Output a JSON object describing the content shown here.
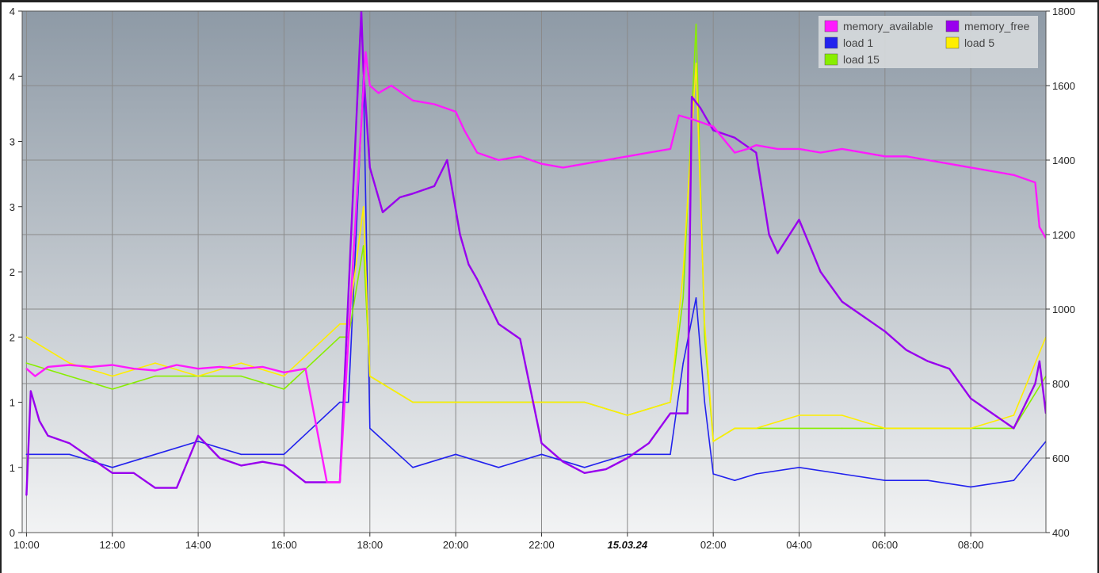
{
  "chart_data": {
    "type": "line",
    "title": "",
    "xlabel": "",
    "ylabel": "",
    "x_tick_labels": [
      "10:00",
      "12:00",
      "14:00",
      "16:00",
      "18:00",
      "20:00",
      "22:00",
      "15.03.24",
      "02:00",
      "04:00",
      "06:00",
      "08:00"
    ],
    "x_range_hours": [
      -0.1,
      23.75
    ],
    "y_left_ticks": [
      "0",
      "1",
      "1",
      "2",
      "2",
      "3",
      "3",
      "4",
      "4"
    ],
    "y_left_values": [
      0,
      0.5,
      1.0,
      1.5,
      2.0,
      2.5,
      3.0,
      3.5,
      4.0
    ],
    "y_left_range": [
      0,
      4
    ],
    "y_right_ticks": [
      "400",
      "600",
      "800",
      "1000",
      "1200",
      "1400",
      "1600",
      "1800"
    ],
    "y_right_range": [
      400,
      1800
    ],
    "grid": true,
    "legend_placement": "top-right",
    "x_unit_note": "x values are hours after 10:00 on the day before 15.03.24",
    "series": [
      {
        "name": "memory_available",
        "axis": "right",
        "color": "#ff1aff",
        "x": [
          0.0,
          0.2,
          0.5,
          1.0,
          1.5,
          2.0,
          2.5,
          3.0,
          3.5,
          4.0,
          4.5,
          5.0,
          5.5,
          6.0,
          6.5,
          7.0,
          7.3,
          7.9,
          8.0,
          8.2,
          8.5,
          9.0,
          9.5,
          10.0,
          10.2,
          10.5,
          11.0,
          11.5,
          12.0,
          12.5,
          13.0,
          13.5,
          14.0,
          14.5,
          15.0,
          15.2,
          15.5,
          16.0,
          16.5,
          16.8,
          17.0,
          17.5,
          18.0,
          18.5,
          19.0,
          19.5,
          20.0,
          20.5,
          21.0,
          21.5,
          22.0,
          22.5,
          23.0,
          23.5,
          23.6,
          23.75
        ],
        "values": [
          840,
          820,
          845,
          850,
          845,
          850,
          840,
          835,
          850,
          840,
          845,
          840,
          845,
          830,
          840,
          535,
          535,
          1690,
          1600,
          1580,
          1600,
          1560,
          1550,
          1530,
          1480,
          1420,
          1400,
          1410,
          1390,
          1380,
          1390,
          1400,
          1410,
          1420,
          1430,
          1520,
          1510,
          1490,
          1420,
          1430,
          1440,
          1430,
          1430,
          1420,
          1430,
          1420,
          1410,
          1410,
          1400,
          1390,
          1380,
          1370,
          1360,
          1340,
          1220,
          1190
        ]
      },
      {
        "name": "memory_free",
        "axis": "right",
        "color": "#9900ee",
        "x": [
          0.0,
          0.1,
          0.3,
          0.5,
          1.0,
          1.5,
          2.0,
          2.5,
          3.0,
          3.5,
          4.0,
          4.5,
          5.0,
          5.5,
          6.0,
          6.5,
          7.0,
          7.3,
          7.8,
          7.85,
          8.0,
          8.3,
          8.7,
          9.0,
          9.5,
          9.8,
          10.1,
          10.3,
          10.5,
          11.0,
          11.5,
          12.0,
          12.5,
          13.0,
          13.5,
          14.0,
          14.5,
          15.0,
          15.4,
          15.5,
          15.7,
          16.0,
          16.5,
          17.0,
          17.3,
          17.5,
          18.0,
          18.5,
          19.0,
          19.5,
          20.0,
          20.5,
          21.0,
          21.5,
          22.0,
          22.5,
          23.0,
          23.5,
          23.6,
          23.75
        ],
        "values": [
          500,
          780,
          700,
          660,
          640,
          600,
          560,
          560,
          520,
          520,
          660,
          600,
          580,
          590,
          580,
          535,
          535,
          535,
          1800,
          1640,
          1380,
          1260,
          1300,
          1310,
          1330,
          1400,
          1200,
          1120,
          1080,
          960,
          920,
          640,
          590,
          560,
          570,
          600,
          640,
          720,
          720,
          1570,
          1540,
          1480,
          1460,
          1420,
          1200,
          1150,
          1240,
          1100,
          1020,
          980,
          940,
          890,
          860,
          840,
          760,
          720,
          680,
          800,
          860,
          720
        ]
      },
      {
        "name": "load 1",
        "axis": "left",
        "color": "#2222ee",
        "x": [
          0.0,
          1.0,
          2.0,
          3.0,
          4.0,
          5.0,
          6.0,
          7.3,
          7.5,
          7.85,
          8.0,
          9.0,
          10.0,
          11.0,
          12.0,
          13.0,
          14.0,
          15.0,
          15.3,
          15.6,
          15.8,
          16.0,
          16.5,
          17.0,
          18.0,
          19.0,
          20.0,
          21.0,
          22.0,
          23.0,
          23.75
        ],
        "values": [
          0.6,
          0.6,
          0.5,
          0.6,
          0.7,
          0.6,
          0.6,
          1.0,
          1.0,
          3.5,
          0.8,
          0.5,
          0.6,
          0.5,
          0.6,
          0.5,
          0.6,
          0.6,
          1.3,
          1.8,
          1.0,
          0.45,
          0.4,
          0.45,
          0.5,
          0.45,
          0.4,
          0.4,
          0.35,
          0.4,
          0.7
        ]
      },
      {
        "name": "load 5",
        "axis": "left",
        "color": "#ffee00",
        "x": [
          0.0,
          1.0,
          2.0,
          3.0,
          4.0,
          5.0,
          6.0,
          7.3,
          7.5,
          7.85,
          8.0,
          9.0,
          10.0,
          11.0,
          12.0,
          13.0,
          14.0,
          15.0,
          15.3,
          15.6,
          15.8,
          16.0,
          16.5,
          17.0,
          18.0,
          19.0,
          20.0,
          21.0,
          22.0,
          23.0,
          23.75
        ],
        "values": [
          1.5,
          1.3,
          1.2,
          1.3,
          1.2,
          1.3,
          1.2,
          1.6,
          1.6,
          2.5,
          1.2,
          1.0,
          1.0,
          1.0,
          1.0,
          1.0,
          0.9,
          1.0,
          2.0,
          3.6,
          1.6,
          0.7,
          0.8,
          0.8,
          0.9,
          0.9,
          0.8,
          0.8,
          0.8,
          0.9,
          1.5
        ]
      },
      {
        "name": "load 15",
        "axis": "left",
        "color": "#88ee00",
        "x": [
          0.0,
          1.0,
          2.0,
          3.0,
          4.0,
          5.0,
          6.0,
          7.3,
          7.5,
          7.85,
          8.0,
          9.0,
          10.0,
          11.0,
          12.0,
          13.0,
          14.0,
          15.0,
          15.3,
          15.6,
          15.8,
          16.0,
          16.5,
          17.0,
          18.0,
          19.0,
          20.0,
          21.0,
          22.0,
          23.0,
          23.75
        ],
        "values": [
          1.3,
          1.2,
          1.1,
          1.2,
          1.2,
          1.2,
          1.1,
          1.5,
          1.5,
          2.2,
          1.2,
          1.0,
          1.0,
          1.0,
          1.0,
          1.0,
          0.9,
          1.0,
          1.8,
          3.9,
          1.5,
          0.7,
          0.8,
          0.8,
          0.8,
          0.8,
          0.8,
          0.8,
          0.8,
          0.8,
          1.2
        ]
      }
    ]
  },
  "legend": {
    "memory_available": "memory_available",
    "memory_free": "memory_free",
    "load1": "load 1",
    "load5": "load 5",
    "load15": "load 15"
  },
  "colors": {
    "plot_top": "#8e9aa6",
    "plot_bottom": "#f2f3f4",
    "grid": "#8a8a8a"
  }
}
